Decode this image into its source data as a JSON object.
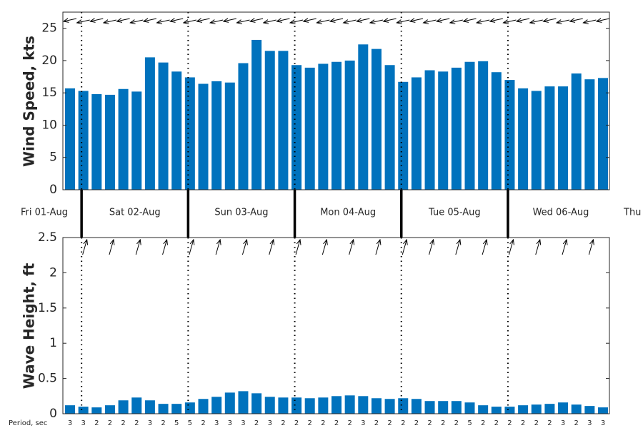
{
  "chart_data": [
    {
      "type": "bar",
      "ylabel": "Wind Speed, kts",
      "color": "#0072bd",
      "day_labels": [
        "Fri 01-Aug",
        "Sat 02-Aug",
        "Sun 03-Aug",
        "Mon 04-Aug",
        "Tue 05-Aug",
        "Wed 06-Aug",
        "Thu"
      ],
      "values": [
        15.7,
        15.3,
        14.8,
        14.7,
        15.6,
        15.2,
        20.5,
        19.7,
        18.3,
        17.4,
        16.4,
        16.8,
        16.6,
        19.6,
        23.2,
        21.5,
        21.5,
        19.3,
        18.9,
        19.5,
        19.8,
        20.0,
        22.5,
        21.8,
        19.3,
        16.7,
        17.4,
        18.5,
        18.3,
        18.9,
        19.8,
        19.9,
        18.2,
        17.0,
        15.7,
        15.3,
        16.0,
        16.0,
        18.0,
        17.1,
        17.3
      ],
      "ylim": [
        0,
        27.5
      ],
      "yticks": [
        0,
        5,
        10,
        15,
        20,
        25
      ]
    },
    {
      "type": "bar",
      "ylabel": "Wave Height, ft",
      "color": "#0072bd",
      "values": [
        0.12,
        0.1,
        0.09,
        0.12,
        0.19,
        0.23,
        0.19,
        0.14,
        0.14,
        0.16,
        0.21,
        0.24,
        0.3,
        0.32,
        0.29,
        0.24,
        0.23,
        0.23,
        0.22,
        0.23,
        0.25,
        0.26,
        0.25,
        0.22,
        0.21,
        0.22,
        0.21,
        0.18,
        0.18,
        0.18,
        0.16,
        0.12,
        0.1,
        0.1,
        0.12,
        0.13,
        0.14,
        0.16,
        0.13,
        0.11,
        0.09
      ],
      "ylim": [
        0,
        2.5
      ],
      "yticks": [
        0,
        0.5,
        1,
        1.5,
        2,
        2.5
      ],
      "period_label": "Period, sec",
      "periods": [
        3,
        3,
        2,
        2,
        2,
        2,
        3,
        2,
        5,
        5,
        2,
        3,
        3,
        3,
        2,
        3,
        2,
        2,
        2,
        2,
        2,
        2,
        3,
        2,
        2,
        2,
        2,
        2,
        2,
        2,
        5,
        2,
        2,
        2,
        2,
        2,
        2,
        3,
        2,
        3,
        3
      ]
    }
  ]
}
